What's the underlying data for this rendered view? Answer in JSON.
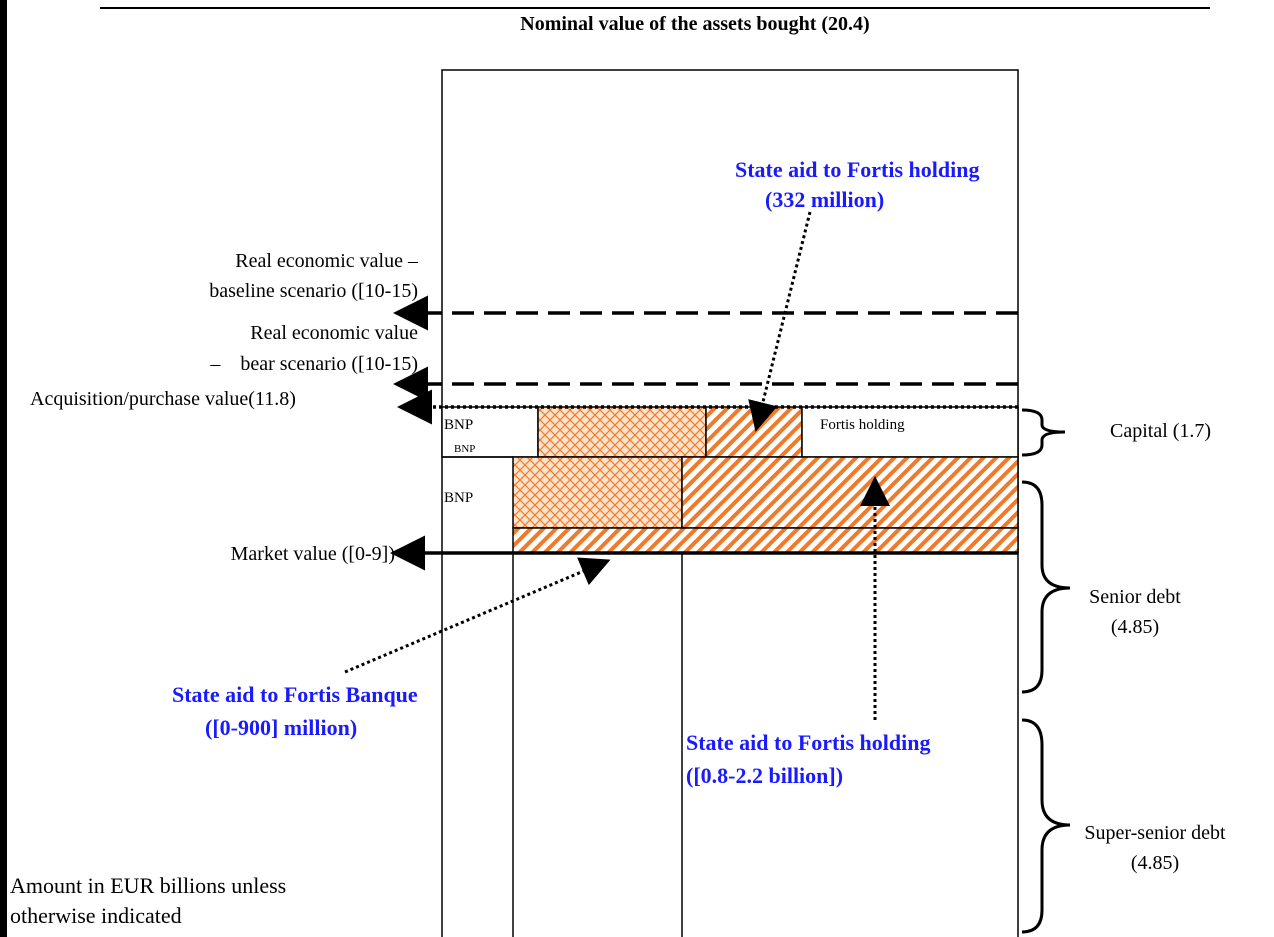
{
  "title": "Nominal value of the assets bought (20.4)",
  "left_labels": {
    "baseline": [
      "Real economic value –",
      "baseline scenario ([10-15)"
    ],
    "bear": [
      "Real economic value",
      "–    bear scenario ([10-15)"
    ],
    "acquisition": "Acquisition/purchase value(11.8)",
    "market": "Market value ([0-9])"
  },
  "cells": {
    "capital_bnp": "BNP",
    "capital_bnp_small": "BNP",
    "capital_fortis": "Fortis holding",
    "senior_bnp": "BNP"
  },
  "brackets": {
    "capital": [
      "Capital (1.7)"
    ],
    "senior": [
      "Senior debt",
      "(4.85)"
    ],
    "super_senior": [
      "Super-senior debt",
      "(4.85)"
    ]
  },
  "callouts": {
    "holding_332": [
      "State aid to Fortis holding",
      "(332 million)"
    ],
    "banque": [
      "State aid to Fortis Banque",
      "([0-900] million)"
    ],
    "holding_range": [
      "State aid to Fortis holding",
      "([0.8-2.2 billion])"
    ]
  },
  "note": [
    "Amount in EUR billions unless",
    "otherwise indicated"
  ]
}
